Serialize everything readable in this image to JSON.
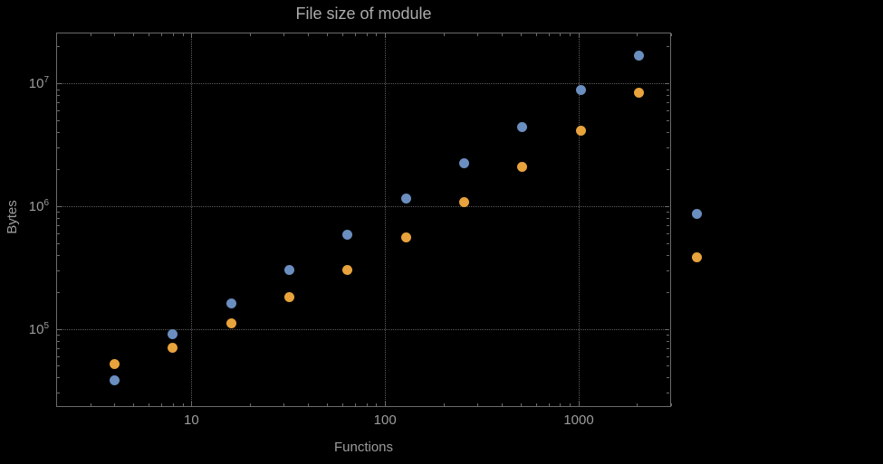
{
  "colors": {
    "background": "#000000",
    "frame": "#6b6b6b",
    "grid": "#5c5c5c",
    "text": "#9c9c9c",
    "series_blue": "#6a8ebf",
    "series_orange": "#e8a33c"
  },
  "chart_data": {
    "type": "scatter",
    "title": "File size of module",
    "xlabel": "Functions",
    "ylabel": "Bytes",
    "x_scale": "log",
    "y_scale": "log",
    "grid": "dotted",
    "legend": "none",
    "xlim": [
      2,
      3000
    ],
    "ylim": [
      23000,
      26000000
    ],
    "x_ticks": [
      10,
      100,
      1000
    ],
    "x_tick_labels": [
      "10",
      "100",
      "1000"
    ],
    "y_ticks": [
      100000,
      1000000,
      10000000
    ],
    "y_tick_labels": [
      {
        "base": "10",
        "exp": "5"
      },
      {
        "base": "10",
        "exp": "6"
      },
      {
        "base": "10",
        "exp": "7"
      }
    ],
    "x": [
      4,
      8,
      16,
      32,
      64,
      128,
      256,
      512,
      1024,
      2048,
      4096
    ],
    "series": [
      {
        "name": "series-1-blue",
        "color": "#6a8ebf",
        "values": [
          38000,
          90000,
          160000,
          300000,
          580000,
          1150000,
          2250000,
          4400000,
          8900000,
          17000000,
          860000
        ]
      },
      {
        "name": "series-2-orange",
        "color": "#e8a33c",
        "values": [
          52000,
          70000,
          110000,
          180000,
          300000,
          560000,
          1080000,
          2100000,
          4100000,
          8400000,
          380000
        ]
      }
    ]
  }
}
